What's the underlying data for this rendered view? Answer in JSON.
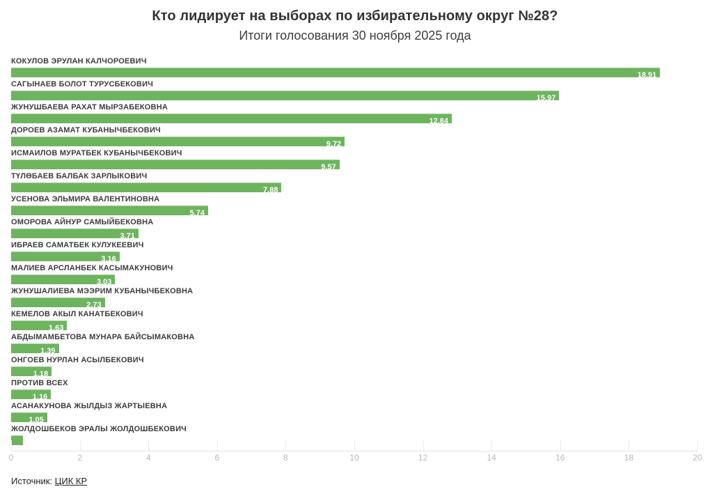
{
  "header": {
    "title": "Кто лидирует на выборах по избирательному округ №28?",
    "subtitle": "Итоги голосования 30 ноября 2025 года"
  },
  "chart_data": {
    "type": "bar",
    "orientation": "horizontal",
    "title": "Кто лидирует на выборах по избирательному округ №28?",
    "subtitle": "Итоги голосования 30 ноября 2025 года",
    "categories": [
      "КОКУЛОВ ЭРУЛАН КАЛЧОРОЕВИЧ",
      "САГЫНАЕВ БОЛОТ ТУРУСБЕКОВИЧ",
      "ЖУНУШБАЕВА РАХАТ МЫРЗАБЕКОВНА",
      "ДОРОЕВ АЗАМАТ КУБАНЫЧБЕКОВИЧ",
      "ИСМАИЛОВ МУРАТБЕК КУБАНЫЧБЕКОВИЧ",
      "ТҮЛӨБАЕВ БАЛБАК ЗАРЛЫКОВИЧ",
      "УСЕНОВА ЭЛЬМИРА ВАЛЕНТИНОВНА",
      "ОМОРОВА АЙНУР САМЫЙБЕКОВНА",
      "ИБРАЕВ САМАТБЕК КУЛУКЕЕВИЧ",
      "МАЛИЕВ АРСЛАНБЕК КАСЫМАКУНОВИЧ",
      "ЖУНУШАЛИЕВА МЭЭРИМ КУБАНЫЧБЕКОВНА",
      "КЕМЕЛОВ АКЫЛ КАНАТБЕКОВИЧ",
      "АБДЫМАМБЕТОВА МУНАРА БАЙСЫМАКОВНА",
      "ОНГОЕВ НУРЛАН АСЫЛБЕКОВИЧ",
      "ПРОТИВ ВСЕХ",
      "АСАНАКУНОВА ЖЫЛДЫЗ ЖАРТЫЕВНА",
      "ЖОЛДОШБЕКОВ ЭРАЛЫ ЖОЛДОШБЕКОВИЧ"
    ],
    "values": [
      18.91,
      15.97,
      12.84,
      9.72,
      9.57,
      7.88,
      5.74,
      3.71,
      3.16,
      3.03,
      2.73,
      1.63,
      1.39,
      1.18,
      1.16,
      1.05,
      0.34
    ],
    "value_labels": [
      "18,91",
      "15,97",
      "12,84",
      "9,72",
      "9,57",
      "7,88",
      "5,74",
      "3,71",
      "3,16",
      "3,03",
      "2,73",
      "1,63",
      "1,39",
      "1,18",
      "1,16",
      "1,05",
      ""
    ],
    "xlim": [
      0,
      20
    ],
    "x_ticks": [
      0,
      2,
      4,
      6,
      8,
      10,
      12,
      14,
      16,
      18,
      20
    ],
    "xlabel": "",
    "ylabel": "",
    "grid": "tick-marks-near-axis-only",
    "legend": "none",
    "bar_color": "#6eb45f",
    "value_label_color": "#ffffff",
    "axis_text_color": "#b9b9b9"
  },
  "footer": {
    "source_label": "Источник:",
    "source_link": "ЦИК КР"
  }
}
